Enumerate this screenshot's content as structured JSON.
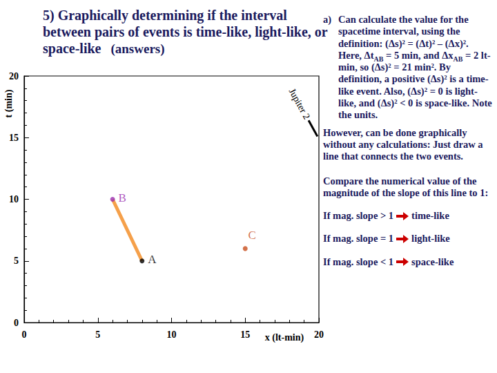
{
  "title": "5) Graphically determining if the interval between pairs of events is time-like, light-like, or space-like",
  "title_note": "(answers)",
  "notes": {
    "a_label": "a)",
    "a": [
      "Can calculate the value for the spacetime interval, using the definition: (Δs)² = (Δt)² – (Δx)². Here, Δt",
      {
        "sub": "AB"
      },
      " = 5 min, and Δx",
      {
        "sub": "AB"
      },
      " = 2 lt-min, so (Δs)² = 21 min². By definition, a positive (Δs)² is a time-like event. Also, (Δs)² = 0 is light-like, and (Δs)² < 0 is space-like. Note the units."
    ],
    "graphical": "However, can be done graphically without any calculations: Just draw a line that connects the two events.",
    "compare": "Compare the numerical value of the magnitude of the slope of this line to 1:",
    "rules": [
      {
        "condition": "If mag. slope > 1",
        "result": "time-like"
      },
      {
        "condition": "If mag. slope = 1",
        "result": "light-like"
      },
      {
        "condition": "If mag. slope < 1",
        "result": "space-like"
      }
    ]
  },
  "chart_data": {
    "type": "scatter",
    "xlabel": "x (lt-min)",
    "ylabel": "t (min)",
    "xlim": [
      0,
      20
    ],
    "ylim": [
      0,
      20
    ],
    "xticks": [
      0,
      5,
      10,
      15,
      20
    ],
    "yticks": [
      0,
      5,
      10,
      15,
      20
    ],
    "grid": false,
    "series": [
      {
        "type": "line",
        "color": "#f5a04a",
        "x": [
          8,
          6
        ],
        "values": [
          5,
          10
        ]
      },
      {
        "type": "line",
        "color": "#000000",
        "x": [
          19.3,
          19.9
        ],
        "values": [
          16.4,
          15.1
        ],
        "label": "Jupiter 2"
      },
      {
        "type": "scatter",
        "marker": "circle",
        "colors": [
          "#000000",
          "#9b30b0",
          "#c84f1e"
        ],
        "x": [
          8,
          6,
          15
        ],
        "values": [
          5,
          10,
          6
        ],
        "labels": [
          "A",
          "B",
          "C"
        ]
      }
    ]
  }
}
